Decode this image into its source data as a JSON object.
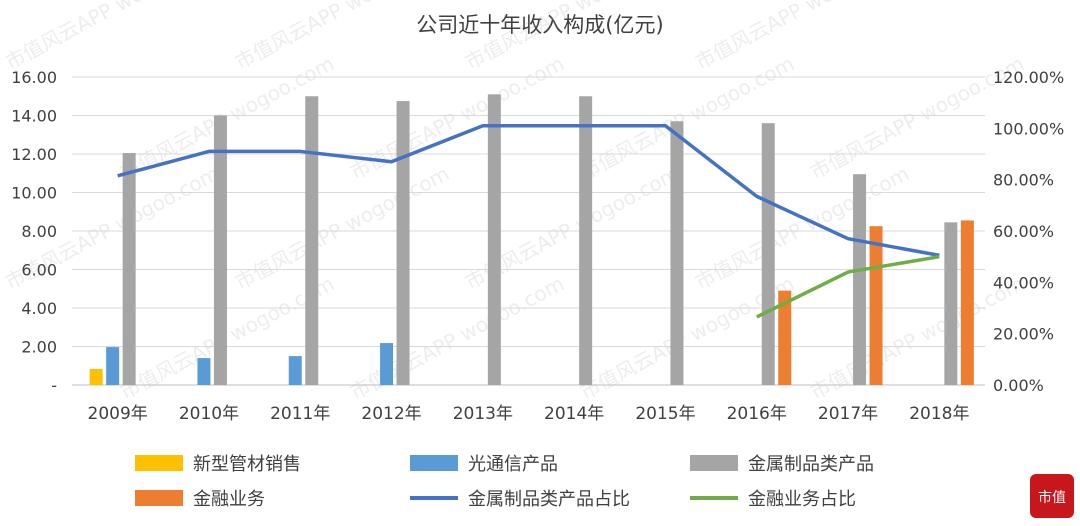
{
  "chart_data": {
    "type": "bar",
    "title": "公司近十年收入构成(亿元)",
    "categories": [
      "2009年",
      "2010年",
      "2011年",
      "2012年",
      "2013年",
      "2014年",
      "2015年",
      "2016年",
      "2017年",
      "2018年"
    ],
    "y_left": {
      "range": [
        0,
        16
      ],
      "ticks": [
        "-",
        "2.00",
        "4.00",
        "6.00",
        "8.00",
        "10.00",
        "12.00",
        "14.00",
        "16.00"
      ]
    },
    "y_right": {
      "range": [
        0,
        120
      ],
      "ticks": [
        "0.00%",
        "20.00%",
        "40.00%",
        "60.00%",
        "80.00%",
        "100.00%",
        "120.00%"
      ]
    },
    "grid": true,
    "legend_placement": "bottom",
    "bar_series": [
      {
        "name": "新型管材销售",
        "color": "#FFC000",
        "values": [
          0.83,
          null,
          null,
          null,
          null,
          null,
          null,
          null,
          null,
          null
        ]
      },
      {
        "name": "光通信产品",
        "color": "#5B9BD5",
        "values": [
          1.97,
          1.4,
          1.5,
          2.18,
          null,
          null,
          null,
          null,
          null,
          null
        ]
      },
      {
        "name": "金属制品类产品",
        "color": "#A5A5A5",
        "values": [
          12.05,
          14.0,
          15.0,
          14.75,
          15.1,
          15.0,
          13.7,
          13.6,
          10.95,
          8.45
        ]
      },
      {
        "name": "金融业务",
        "color": "#ED7D31",
        "values": [
          null,
          null,
          null,
          null,
          null,
          null,
          null,
          4.9,
          8.25,
          8.55
        ]
      }
    ],
    "line_series": [
      {
        "name": "金属制品类产品占比",
        "color": "#4472C4",
        "axis": "right",
        "values": [
          81.5,
          91,
          91,
          87,
          101,
          101,
          101,
          73.5,
          57,
          50.5
        ]
      },
      {
        "name": "金融业务占比",
        "color": "#70AD47",
        "axis": "right",
        "values": [
          null,
          null,
          null,
          null,
          null,
          null,
          null,
          26.5,
          44,
          50
        ]
      }
    ]
  },
  "watermark": "市值风云APP wogoo.com",
  "logo": "市值风云"
}
